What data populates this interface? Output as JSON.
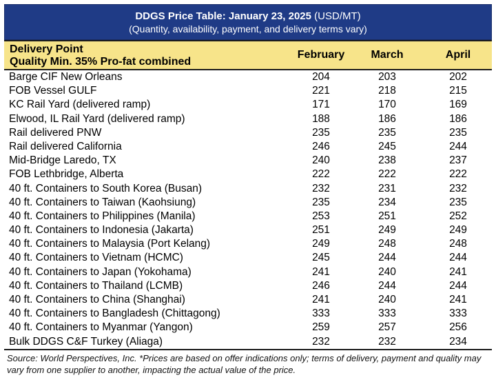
{
  "title": {
    "main": "DDGS Price Table: January 23, 2025",
    "units": "(USD/MT)",
    "subtitle": "(Quantity, availability, payment, and delivery terms vary)"
  },
  "header": {
    "delivery_point": "Delivery Point",
    "quality": "Quality Min. 35% Pro-fat combined",
    "months": [
      "February",
      "March",
      "April"
    ]
  },
  "rows": [
    {
      "name": "Barge CIF New Orleans",
      "feb": "204",
      "mar": "203",
      "apr": "202"
    },
    {
      "name": "FOB Vessel GULF",
      "feb": "221",
      "mar": "218",
      "apr": "215"
    },
    {
      "name": "KC Rail Yard (delivered ramp)",
      "feb": "171",
      "mar": "170",
      "apr": "169"
    },
    {
      "name": "Elwood, IL Rail Yard (delivered ramp)",
      "feb": "188",
      "mar": "186",
      "apr": "186"
    },
    {
      "name": "Rail delivered PNW",
      "feb": "235",
      "mar": "235",
      "apr": "235"
    },
    {
      "name": "Rail delivered California",
      "feb": "246",
      "mar": "245",
      "apr": "244"
    },
    {
      "name": "Mid-Bridge Laredo, TX",
      "feb": "240",
      "mar": "238",
      "apr": "237"
    },
    {
      "name": "FOB Lethbridge, Alberta",
      "feb": "222",
      "mar": "222",
      "apr": "222"
    },
    {
      "name": "40 ft. Containers to South Korea (Busan)",
      "feb": "232",
      "mar": "231",
      "apr": "232"
    },
    {
      "name": "40 ft. Containers to Taiwan (Kaohsiung)",
      "feb": "235",
      "mar": "234",
      "apr": "235"
    },
    {
      "name": "40 ft. Containers to Philippines (Manila)",
      "feb": "253",
      "mar": "251",
      "apr": "252"
    },
    {
      "name": "40 ft. Containers to Indonesia (Jakarta)",
      "feb": "251",
      "mar": "249",
      "apr": "249"
    },
    {
      "name": "40 ft. Containers to Malaysia (Port Kelang)",
      "feb": "249",
      "mar": "248",
      "apr": "248"
    },
    {
      "name": "40 ft. Containers to Vietnam (HCMC)",
      "feb": "245",
      "mar": "244",
      "apr": "244"
    },
    {
      "name": "40 ft. Containers to Japan (Yokohama)",
      "feb": "241",
      "mar": "240",
      "apr": "241"
    },
    {
      "name": "40 ft. Containers to Thailand (LCMB)",
      "feb": "246",
      "mar": "244",
      "apr": "244"
    },
    {
      "name": "40 ft. Containers to China (Shanghai)",
      "feb": "241",
      "mar": "240",
      "apr": "241"
    },
    {
      "name": "40 ft. Containers to Bangladesh (Chittagong)",
      "feb": "333",
      "mar": "333",
      "apr": "333"
    },
    {
      "name": "40 ft. Containers to Myanmar (Yangon)",
      "feb": "259",
      "mar": "257",
      "apr": "256"
    },
    {
      "name": "Bulk DDGS C&F Turkey (Aliaga)",
      "feb": "232",
      "mar": "232",
      "apr": "234"
    }
  ],
  "footnote": "Source: World Perspectives, Inc. *Prices are based on offer indications only; terms of delivery, payment and quality may vary from one supplier to another, impacting the actual value of the price."
}
